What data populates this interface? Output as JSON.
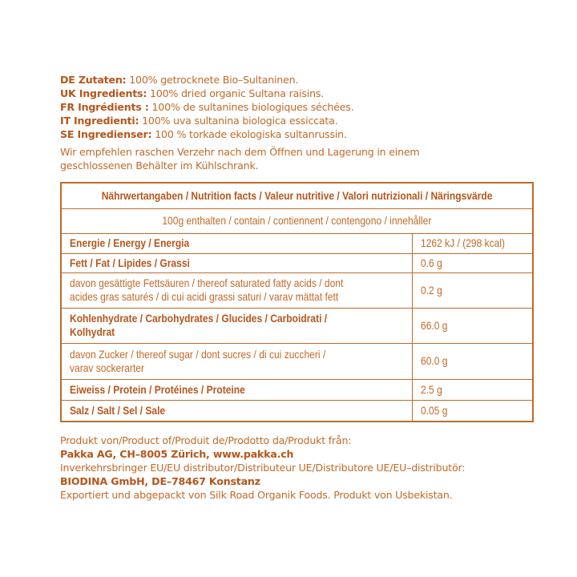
{
  "ingredients": [
    {
      "label": "DE Zutaten:",
      "text": " 100% getrocknete Bio–Sultaninen."
    },
    {
      "label": "UK Ingredients:",
      "text": " 100% dried organic Sultana raisins."
    },
    {
      "label": "FR Ingrédients :",
      "text": " 100% de sultanines biologiques séchées."
    },
    {
      "label": "IT Ingredienti:",
      "text": " 100% uva sultanina biologica essiccata."
    },
    {
      "label": "SE Ingredienser:",
      "text": " 100 % torkade ekologiska sultanrussin."
    }
  ],
  "storage_note": [
    "Wir empfehlen raschen Verzehr nach dem Öffnen und Lagerung in einem",
    "geschlossenen Behälter im Kühlschrank."
  ],
  "nutrition": {
    "title": "Nährwertangaben / Nutrition facts / Valeur nutritive / Valori nutrizionali / Näringsvärde",
    "subtitle": "100g enthalten / contain / contiennent / contengono / innehåller",
    "rows": [
      {
        "lines": [
          "Energie / Energy / Energia"
        ],
        "value": "1262 kJ / (298 kcal)",
        "bold": true
      },
      {
        "lines": [
          "Fett / Fat / Lipides / Grassi"
        ],
        "value": "0.6 g",
        "bold": true
      },
      {
        "lines": [
          "davon gesättigte Fettsäuren / thereof saturated fatty acids / dont",
          "acides gras saturés / di cui acidi grassi saturi / varav mättat fett"
        ],
        "value": "0.2 g",
        "bold": false
      },
      {
        "lines": [
          "Kohlenhydrate / Carbohydrates / Glucides / Carboidrati /",
          "Kolhydrat"
        ],
        "value": "66.0 g",
        "bold": true
      },
      {
        "lines": [
          "davon Zucker / thereof sugar / dont sucres / di cui zuccheri /",
          "varav sockerarter"
        ],
        "value": "60.0 g",
        "bold": false
      },
      {
        "lines": [
          "Eiweiss / Protein / Protéines / Proteine"
        ],
        "value": "2.5 g",
        "bold": true
      },
      {
        "lines": [
          "Salz / Salt / Sel / Sale"
        ],
        "value": "0.05 g",
        "bold": true
      }
    ]
  },
  "footer": {
    "producer_label": "Produkt von/Product of/Produit de/Prodotto da/Produkt från:",
    "producer": "Pakka AG, CH–8005 Zürich, www.pakka.ch",
    "distributor_label": "Inverkehrsbringer EU/EU distributor/Distributeur UE/Distributore UE/EU–distributör:",
    "distributor": "BIODINA GmbH, DE–78467 Konstanz",
    "origin": "Exportiert und abgepackt von Silk Road Organik Foods. Produkt von Usbekistan."
  }
}
